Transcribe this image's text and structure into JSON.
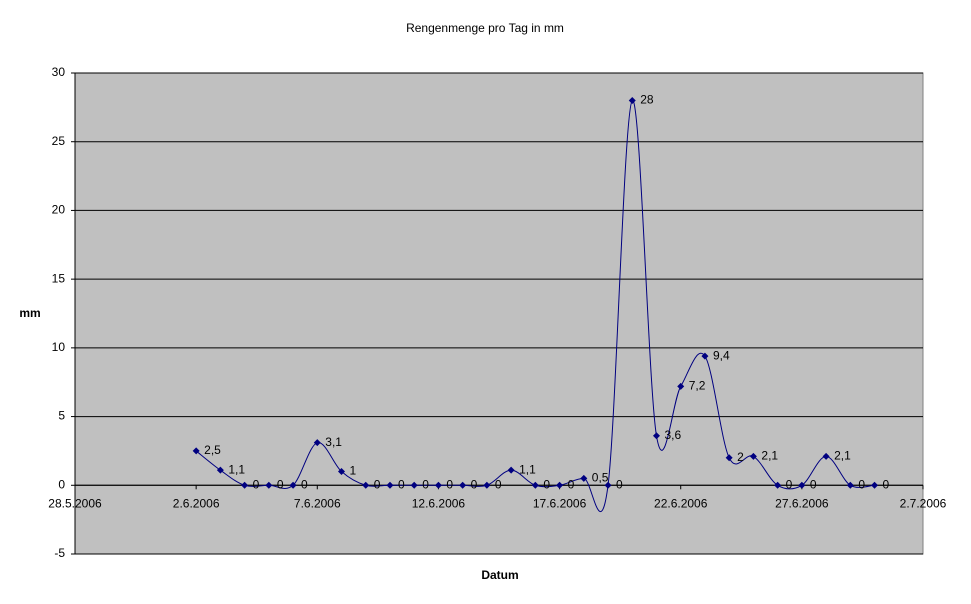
{
  "chart_data": {
    "type": "line",
    "title": "Rengenmenge pro Tag in mm",
    "x_label": "Datum",
    "y_label": "mm",
    "x": [
      "2.6.2006",
      "3.6.2006",
      "4.6.2006",
      "5.6.2006",
      "6.6.2006",
      "7.6.2006",
      "8.6.2006",
      "9.6.2006",
      "10.6.2006",
      "11.6.2006",
      "12.6.2006",
      "13.6.2006",
      "14.6.2006",
      "15.6.2006",
      "16.6.2006",
      "17.6.2006",
      "18.6.2006",
      "19.6.2006",
      "20.6.2006",
      "21.6.2006",
      "22.6.2006",
      "23.6.2006",
      "24.6.2006",
      "25.6.2006",
      "26.6.2006",
      "27.6.2006",
      "28.6.2006",
      "29.6.2006",
      "30.6.2006"
    ],
    "series": [
      {
        "name": "mm",
        "color": "#000080",
        "values": [
          2.5,
          1.1,
          0,
          0,
          0,
          3.1,
          1,
          0,
          0,
          0,
          0,
          0,
          0,
          1.1,
          0,
          0,
          0.5,
          0,
          28,
          3.6,
          7.2,
          9.4,
          2,
          2.1,
          0,
          0,
          2.1,
          0,
          0
        ],
        "value_labels": [
          "2,5",
          "1,1",
          "0",
          "0",
          "0",
          "3,1",
          "1",
          "0",
          "0",
          "0",
          "0",
          "0",
          "0",
          "1,1",
          "0",
          "0",
          "0,5",
          "0",
          "28",
          "3,6",
          "7,2",
          "9,4",
          "2",
          "2,1",
          "0",
          "0",
          "2,1",
          "0",
          "0"
        ]
      }
    ],
    "xlim": [
      "28.5.2006",
      "2.7.2006"
    ],
    "xticks": [
      "28.5.2006",
      "2.6.2006",
      "7.6.2006",
      "12.6.2006",
      "17.6.2006",
      "22.6.2006",
      "27.6.2006",
      "2.7.2006"
    ],
    "ylim": [
      -5,
      30
    ],
    "yticks": [
      -5,
      0,
      5,
      10,
      15,
      20,
      25,
      30
    ],
    "grid": true,
    "background": "#c0c0c0"
  }
}
